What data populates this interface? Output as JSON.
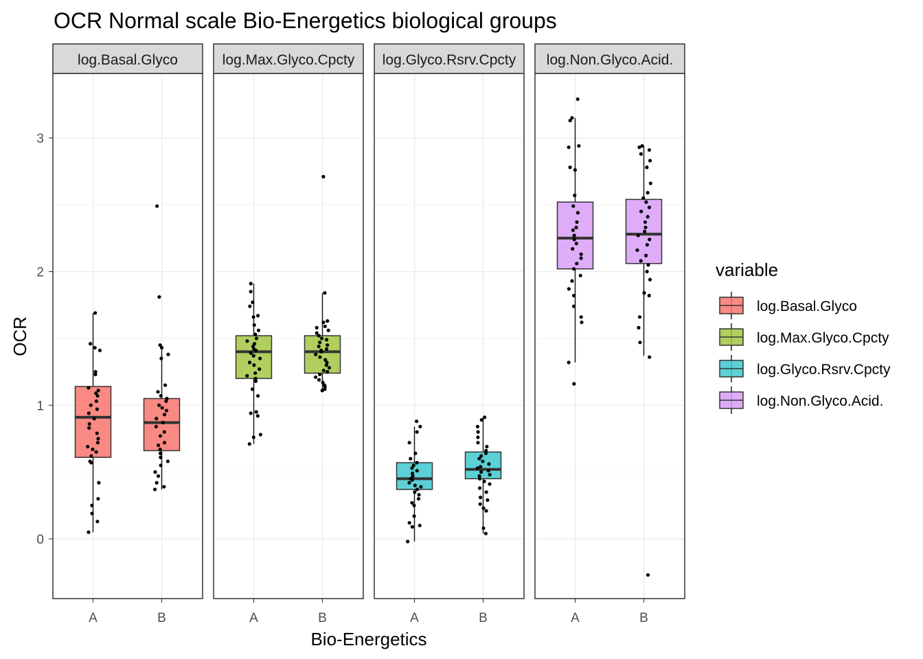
{
  "chart_data": {
    "type": "boxplot",
    "title": "OCR Normal scale Bio-Energetics biological groups",
    "xlabel": "Bio-Energetics",
    "ylabel": "OCR",
    "ylim": [
      -0.45,
      3.5
    ],
    "yticks": [
      0,
      1,
      2,
      3
    ],
    "categories": [
      "A",
      "B"
    ],
    "grid": true,
    "legend": {
      "title": "variable",
      "position": "right",
      "entries": [
        "log.Basal.Glyco",
        "log.Max.Glyco.Cpcty",
        "log.Glyco.Rsrv.Cpcty",
        "log.Non.Glyco.Acid."
      ]
    },
    "panels": [
      {
        "name": "log.Basal.Glyco",
        "color": "#F8766D",
        "boxes": [
          {
            "group": "A",
            "min": 0.05,
            "q1": 0.61,
            "median": 0.91,
            "q3": 1.14,
            "max": 1.69
          },
          {
            "group": "B",
            "min": 0.37,
            "q1": 0.66,
            "median": 0.87,
            "q3": 1.05,
            "max": 1.45
          }
        ],
        "points": [
          {
            "group": "A",
            "values": [
              1.69,
              1.46,
              1.43,
              1.41,
              1.25,
              1.23,
              1.13,
              1.11,
              1.09,
              1.07,
              1.03,
              1.0,
              0.97,
              0.94,
              0.9,
              0.86,
              0.83,
              0.79,
              0.75,
              0.72,
              0.69,
              0.67,
              0.65,
              0.62,
              0.58,
              0.57,
              0.42,
              0.3,
              0.25,
              0.19,
              0.13,
              0.05
            ]
          },
          {
            "group": "B",
            "values": [
              2.49,
              1.81,
              1.45,
              1.43,
              1.38,
              1.35,
              1.15,
              1.1,
              1.07,
              1.05,
              1.03,
              1.0,
              0.98,
              0.96,
              0.93,
              0.9,
              0.87,
              0.84,
              0.8,
              0.77,
              0.72,
              0.7,
              0.67,
              0.64,
              0.61,
              0.58,
              0.55,
              0.5,
              0.47,
              0.42,
              0.39,
              0.37
            ]
          }
        ]
      },
      {
        "name": "log.Max.Glyco.Cpcty",
        "color": "#A3C643",
        "boxes": [
          {
            "group": "A",
            "min": 0.71,
            "q1": 1.2,
            "median": 1.4,
            "q3": 1.52,
            "max": 1.91
          },
          {
            "group": "B",
            "min": 1.11,
            "q1": 1.24,
            "median": 1.4,
            "q3": 1.52,
            "max": 1.84
          }
        ],
        "points": [
          {
            "group": "A",
            "values": [
              1.91,
              1.85,
              1.77,
              1.74,
              1.67,
              1.66,
              1.6,
              1.56,
              1.53,
              1.5,
              1.48,
              1.46,
              1.44,
              1.42,
              1.41,
              1.39,
              1.37,
              1.35,
              1.32,
              1.3,
              1.27,
              1.24,
              1.22,
              1.2,
              1.18,
              1.12,
              1.07,
              0.95,
              0.94,
              0.92,
              0.78,
              0.76,
              0.71
            ]
          },
          {
            "group": "B",
            "values": [
              2.71,
              1.84,
              1.63,
              1.62,
              1.59,
              1.58,
              1.56,
              1.54,
              1.52,
              1.5,
              1.49,
              1.47,
              1.45,
              1.44,
              1.42,
              1.41,
              1.4,
              1.38,
              1.36,
              1.34,
              1.32,
              1.3,
              1.28,
              1.26,
              1.25,
              1.23,
              1.21,
              1.19,
              1.17,
              1.15,
              1.14,
              1.12,
              1.11
            ]
          }
        ]
      },
      {
        "name": "log.Glyco.Rsrv.Cpcty",
        "color": "#3EC9D0",
        "boxes": [
          {
            "group": "A",
            "min": -0.02,
            "q1": 0.37,
            "median": 0.45,
            "q3": 0.57,
            "max": 0.84
          },
          {
            "group": "B",
            "min": 0.04,
            "q1": 0.45,
            "median": 0.52,
            "q3": 0.65,
            "max": 0.91
          }
        ],
        "points": [
          {
            "group": "A",
            "values": [
              0.88,
              0.84,
              0.8,
              0.72,
              0.64,
              0.6,
              0.57,
              0.55,
              0.53,
              0.51,
              0.49,
              0.47,
              0.45,
              0.44,
              0.42,
              0.4,
              0.39,
              0.37,
              0.35,
              0.33,
              0.3,
              0.27,
              0.25,
              0.17,
              0.12,
              0.1,
              0.09,
              -0.02
            ]
          },
          {
            "group": "B",
            "values": [
              0.91,
              0.89,
              0.84,
              0.8,
              0.76,
              0.72,
              0.69,
              0.66,
              0.64,
              0.62,
              0.6,
              0.58,
              0.56,
              0.54,
              0.53,
              0.51,
              0.5,
              0.48,
              0.47,
              0.45,
              0.43,
              0.41,
              0.38,
              0.35,
              0.31,
              0.29,
              0.26,
              0.23,
              0.21,
              0.08,
              0.04
            ]
          }
        ]
      },
      {
        "name": "log.Non.Glyco.Acid.",
        "color": "#D99DF7",
        "boxes": [
          {
            "group": "A",
            "min": 1.32,
            "q1": 2.02,
            "median": 2.25,
            "q3": 2.52,
            "max": 3.15
          },
          {
            "group": "B",
            "min": 1.37,
            "q1": 2.06,
            "median": 2.28,
            "q3": 2.54,
            "max": 2.94
          }
        ],
        "points": [
          {
            "group": "A",
            "values": [
              3.29,
              3.15,
              3.13,
              2.94,
              2.93,
              2.78,
              2.76,
              2.57,
              2.49,
              2.44,
              2.37,
              2.33,
              2.31,
              2.27,
              2.24,
              2.21,
              2.17,
              2.13,
              2.1,
              2.06,
              2.02,
              1.97,
              1.93,
              1.87,
              1.82,
              1.74,
              1.66,
              1.62,
              1.32,
              1.16
            ]
          },
          {
            "group": "B",
            "values": [
              2.94,
              2.93,
              2.91,
              2.88,
              2.83,
              2.78,
              2.66,
              2.59,
              2.55,
              2.52,
              2.48,
              2.45,
              2.41,
              2.37,
              2.33,
              2.3,
              2.27,
              2.24,
              2.2,
              2.16,
              2.12,
              2.08,
              2.05,
              2.0,
              1.94,
              1.84,
              1.82,
              1.66,
              1.58,
              1.47,
              1.36,
              -0.27
            ]
          }
        ]
      }
    ]
  }
}
